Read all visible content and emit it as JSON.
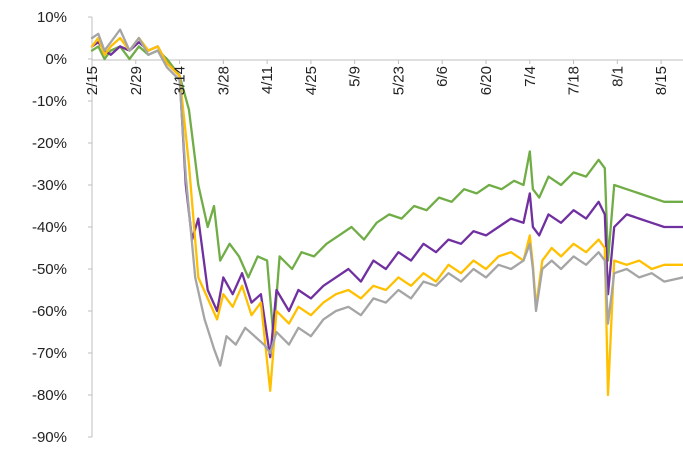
{
  "chart_data": {
    "type": "line",
    "title": "",
    "xlabel": "",
    "ylabel": "",
    "ylim": [
      -90,
      10
    ],
    "yticks": [
      10,
      0,
      -10,
      -20,
      -30,
      -40,
      -50,
      -60,
      -70,
      -80,
      -90
    ],
    "ytick_labels": [
      "10%",
      "0%",
      "-10%",
      "-20%",
      "-30%",
      "-40%",
      "-50%",
      "-60%",
      "-70%",
      "-80%",
      "-90%"
    ],
    "x_start": "2020-02-15",
    "x_end": "2020-08-22",
    "xticks": [
      {
        "date": "2020-02-15",
        "label": "2/15"
      },
      {
        "date": "2020-02-29",
        "label": "2/29"
      },
      {
        "date": "2020-03-14",
        "label": "3/14"
      },
      {
        "date": "2020-03-28",
        "label": "3/28"
      },
      {
        "date": "2020-04-11",
        "label": "4/11"
      },
      {
        "date": "2020-04-25",
        "label": "4/25"
      },
      {
        "date": "2020-05-09",
        "label": "5/9"
      },
      {
        "date": "2020-05-23",
        "label": "5/23"
      },
      {
        "date": "2020-06-06",
        "label": "6/6"
      },
      {
        "date": "2020-06-20",
        "label": "6/20"
      },
      {
        "date": "2020-07-04",
        "label": "7/4"
      },
      {
        "date": "2020-07-18",
        "label": "7/18"
      },
      {
        "date": "2020-08-01",
        "label": "8/1"
      },
      {
        "date": "2020-08-15",
        "label": "8/15"
      }
    ],
    "grid": false,
    "legend": "none",
    "series": [
      {
        "color": "#70AD47",
        "points": [
          [
            "2020-02-15",
            2
          ],
          [
            "2020-02-17",
            3
          ],
          [
            "2020-02-19",
            0
          ],
          [
            "2020-02-21",
            2
          ],
          [
            "2020-02-24",
            3
          ],
          [
            "2020-02-27",
            0
          ],
          [
            "2020-03-01",
            3
          ],
          [
            "2020-03-04",
            1
          ],
          [
            "2020-03-07",
            2
          ],
          [
            "2020-03-10",
            0
          ],
          [
            "2020-03-14",
            -4
          ],
          [
            "2020-03-17",
            -12
          ],
          [
            "2020-03-20",
            -30
          ],
          [
            "2020-03-23",
            -40
          ],
          [
            "2020-03-25",
            -35
          ],
          [
            "2020-03-27",
            -48
          ],
          [
            "2020-03-30",
            -44
          ],
          [
            "2020-04-02",
            -47
          ],
          [
            "2020-04-05",
            -52
          ],
          [
            "2020-04-08",
            -47
          ],
          [
            "2020-04-11",
            -48
          ],
          [
            "2020-04-13",
            -66
          ],
          [
            "2020-04-15",
            -47
          ],
          [
            "2020-04-19",
            -50
          ],
          [
            "2020-04-22",
            -46
          ],
          [
            "2020-04-26",
            -47
          ],
          [
            "2020-04-30",
            -44
          ],
          [
            "2020-05-04",
            -42
          ],
          [
            "2020-05-08",
            -40
          ],
          [
            "2020-05-12",
            -43
          ],
          [
            "2020-05-16",
            -39
          ],
          [
            "2020-05-20",
            -37
          ],
          [
            "2020-05-24",
            -38
          ],
          [
            "2020-05-28",
            -35
          ],
          [
            "2020-06-01",
            -36
          ],
          [
            "2020-06-05",
            -33
          ],
          [
            "2020-06-09",
            -34
          ],
          [
            "2020-06-13",
            -31
          ],
          [
            "2020-06-17",
            -32
          ],
          [
            "2020-06-21",
            -30
          ],
          [
            "2020-06-25",
            -31
          ],
          [
            "2020-06-29",
            -29
          ],
          [
            "2020-07-02",
            -30
          ],
          [
            "2020-07-04",
            -22
          ],
          [
            "2020-07-05",
            -31
          ],
          [
            "2020-07-07",
            -33
          ],
          [
            "2020-07-10",
            -28
          ],
          [
            "2020-07-14",
            -30
          ],
          [
            "2020-07-18",
            -27
          ],
          [
            "2020-07-22",
            -28
          ],
          [
            "2020-07-26",
            -24
          ],
          [
            "2020-07-28",
            -26
          ],
          [
            "2020-07-29",
            -48
          ],
          [
            "2020-07-31",
            -30
          ],
          [
            "2020-08-04",
            -31
          ],
          [
            "2020-08-08",
            -32
          ],
          [
            "2020-08-12",
            -33
          ],
          [
            "2020-08-16",
            -34
          ],
          [
            "2020-08-22",
            -34
          ]
        ]
      },
      {
        "color": "#7030A0",
        "points": [
          [
            "2020-02-15",
            3
          ],
          [
            "2020-02-17",
            4
          ],
          [
            "2020-02-19",
            2
          ],
          [
            "2020-02-21",
            1
          ],
          [
            "2020-02-24",
            3
          ],
          [
            "2020-02-27",
            2
          ],
          [
            "2020-03-01",
            4
          ],
          [
            "2020-03-04",
            2
          ],
          [
            "2020-03-07",
            3
          ],
          [
            "2020-03-10",
            -1
          ],
          [
            "2020-03-14",
            -4
          ],
          [
            "2020-03-16",
            -30
          ],
          [
            "2020-03-18",
            -43
          ],
          [
            "2020-03-20",
            -38
          ],
          [
            "2020-03-23",
            -55
          ],
          [
            "2020-03-26",
            -60
          ],
          [
            "2020-03-28",
            -52
          ],
          [
            "2020-03-31",
            -56
          ],
          [
            "2020-04-03",
            -51
          ],
          [
            "2020-04-06",
            -58
          ],
          [
            "2020-04-09",
            -56
          ],
          [
            "2020-04-12",
            -71
          ],
          [
            "2020-04-14",
            -55
          ],
          [
            "2020-04-18",
            -60
          ],
          [
            "2020-04-21",
            -55
          ],
          [
            "2020-04-25",
            -57
          ],
          [
            "2020-04-29",
            -54
          ],
          [
            "2020-05-03",
            -52
          ],
          [
            "2020-05-07",
            -50
          ],
          [
            "2020-05-11",
            -53
          ],
          [
            "2020-05-15",
            -48
          ],
          [
            "2020-05-19",
            -50
          ],
          [
            "2020-05-23",
            -46
          ],
          [
            "2020-05-27",
            -48
          ],
          [
            "2020-05-31",
            -44
          ],
          [
            "2020-06-04",
            -46
          ],
          [
            "2020-06-08",
            -43
          ],
          [
            "2020-06-12",
            -44
          ],
          [
            "2020-06-16",
            -41
          ],
          [
            "2020-06-20",
            -42
          ],
          [
            "2020-06-24",
            -40
          ],
          [
            "2020-06-28",
            -38
          ],
          [
            "2020-07-02",
            -39
          ],
          [
            "2020-07-04",
            -32
          ],
          [
            "2020-07-05",
            -40
          ],
          [
            "2020-07-07",
            -42
          ],
          [
            "2020-07-10",
            -37
          ],
          [
            "2020-07-14",
            -39
          ],
          [
            "2020-07-18",
            -36
          ],
          [
            "2020-07-22",
            -38
          ],
          [
            "2020-07-26",
            -34
          ],
          [
            "2020-07-28",
            -37
          ],
          [
            "2020-07-29",
            -56
          ],
          [
            "2020-07-31",
            -40
          ],
          [
            "2020-08-04",
            -37
          ],
          [
            "2020-08-08",
            -38
          ],
          [
            "2020-08-12",
            -39
          ],
          [
            "2020-08-16",
            -40
          ],
          [
            "2020-08-22",
            -40
          ]
        ]
      },
      {
        "color": "#FFC000",
        "points": [
          [
            "2020-02-15",
            3
          ],
          [
            "2020-02-17",
            5
          ],
          [
            "2020-02-19",
            1
          ],
          [
            "2020-02-21",
            3
          ],
          [
            "2020-02-24",
            5
          ],
          [
            "2020-02-27",
            2
          ],
          [
            "2020-03-01",
            5
          ],
          [
            "2020-03-04",
            2
          ],
          [
            "2020-03-07",
            3
          ],
          [
            "2020-03-10",
            -1
          ],
          [
            "2020-03-14",
            -4
          ],
          [
            "2020-03-17",
            -25
          ],
          [
            "2020-03-20",
            -52
          ],
          [
            "2020-03-23",
            -57
          ],
          [
            "2020-03-26",
            -62
          ],
          [
            "2020-03-28",
            -56
          ],
          [
            "2020-03-31",
            -59
          ],
          [
            "2020-04-03",
            -54
          ],
          [
            "2020-04-06",
            -61
          ],
          [
            "2020-04-09",
            -58
          ],
          [
            "2020-04-12",
            -79
          ],
          [
            "2020-04-14",
            -60
          ],
          [
            "2020-04-18",
            -63
          ],
          [
            "2020-04-21",
            -59
          ],
          [
            "2020-04-25",
            -61
          ],
          [
            "2020-04-29",
            -58
          ],
          [
            "2020-05-03",
            -56
          ],
          [
            "2020-05-07",
            -55
          ],
          [
            "2020-05-11",
            -57
          ],
          [
            "2020-05-15",
            -54
          ],
          [
            "2020-05-19",
            -55
          ],
          [
            "2020-05-23",
            -52
          ],
          [
            "2020-05-27",
            -54
          ],
          [
            "2020-05-31",
            -51
          ],
          [
            "2020-06-04",
            -53
          ],
          [
            "2020-06-08",
            -49
          ],
          [
            "2020-06-12",
            -51
          ],
          [
            "2020-06-16",
            -48
          ],
          [
            "2020-06-20",
            -50
          ],
          [
            "2020-06-24",
            -47
          ],
          [
            "2020-06-28",
            -46
          ],
          [
            "2020-07-02",
            -48
          ],
          [
            "2020-07-04",
            -42
          ],
          [
            "2020-07-05",
            -49
          ],
          [
            "2020-07-06",
            -59
          ],
          [
            "2020-07-08",
            -48
          ],
          [
            "2020-07-11",
            -45
          ],
          [
            "2020-07-14",
            -47
          ],
          [
            "2020-07-18",
            -44
          ],
          [
            "2020-07-22",
            -46
          ],
          [
            "2020-07-26",
            -43
          ],
          [
            "2020-07-28",
            -45
          ],
          [
            "2020-07-29",
            -80
          ],
          [
            "2020-07-31",
            -48
          ],
          [
            "2020-08-04",
            -49
          ],
          [
            "2020-08-08",
            -48
          ],
          [
            "2020-08-12",
            -50
          ],
          [
            "2020-08-16",
            -49
          ],
          [
            "2020-08-22",
            -49
          ]
        ]
      },
      {
        "color": "#A5A5A5",
        "points": [
          [
            "2020-02-15",
            5
          ],
          [
            "2020-02-17",
            6
          ],
          [
            "2020-02-19",
            2
          ],
          [
            "2020-02-21",
            4
          ],
          [
            "2020-02-24",
            7
          ],
          [
            "2020-02-27",
            2
          ],
          [
            "2020-03-01",
            5
          ],
          [
            "2020-03-04",
            1
          ],
          [
            "2020-03-07",
            2
          ],
          [
            "2020-03-10",
            -2
          ],
          [
            "2020-03-14",
            -5
          ],
          [
            "2020-03-16",
            -28
          ],
          [
            "2020-03-19",
            -52
          ],
          [
            "2020-03-22",
            -62
          ],
          [
            "2020-03-25",
            -69
          ],
          [
            "2020-03-27",
            -73
          ],
          [
            "2020-03-29",
            -66
          ],
          [
            "2020-04-01",
            -68
          ],
          [
            "2020-04-04",
            -64
          ],
          [
            "2020-04-07",
            -66
          ],
          [
            "2020-04-10",
            -68
          ],
          [
            "2020-04-12",
            -70
          ],
          [
            "2020-04-14",
            -65
          ],
          [
            "2020-04-18",
            -68
          ],
          [
            "2020-04-21",
            -64
          ],
          [
            "2020-04-25",
            -66
          ],
          [
            "2020-04-29",
            -62
          ],
          [
            "2020-05-03",
            -60
          ],
          [
            "2020-05-07",
            -59
          ],
          [
            "2020-05-11",
            -61
          ],
          [
            "2020-05-15",
            -57
          ],
          [
            "2020-05-19",
            -58
          ],
          [
            "2020-05-23",
            -55
          ],
          [
            "2020-05-27",
            -57
          ],
          [
            "2020-05-31",
            -53
          ],
          [
            "2020-06-04",
            -54
          ],
          [
            "2020-06-08",
            -51
          ],
          [
            "2020-06-12",
            -53
          ],
          [
            "2020-06-16",
            -50
          ],
          [
            "2020-06-20",
            -52
          ],
          [
            "2020-06-24",
            -49
          ],
          [
            "2020-06-28",
            -50
          ],
          [
            "2020-07-02",
            -48
          ],
          [
            "2020-07-04",
            -44
          ],
          [
            "2020-07-05",
            -50
          ],
          [
            "2020-07-06",
            -60
          ],
          [
            "2020-07-08",
            -50
          ],
          [
            "2020-07-11",
            -48
          ],
          [
            "2020-07-14",
            -50
          ],
          [
            "2020-07-18",
            -47
          ],
          [
            "2020-07-22",
            -49
          ],
          [
            "2020-07-26",
            -46
          ],
          [
            "2020-07-28",
            -48
          ],
          [
            "2020-07-29",
            -63
          ],
          [
            "2020-07-31",
            -51
          ],
          [
            "2020-08-04",
            -50
          ],
          [
            "2020-08-08",
            -52
          ],
          [
            "2020-08-12",
            -51
          ],
          [
            "2020-08-16",
            -53
          ],
          [
            "2020-08-22",
            -52
          ]
        ]
      }
    ]
  }
}
